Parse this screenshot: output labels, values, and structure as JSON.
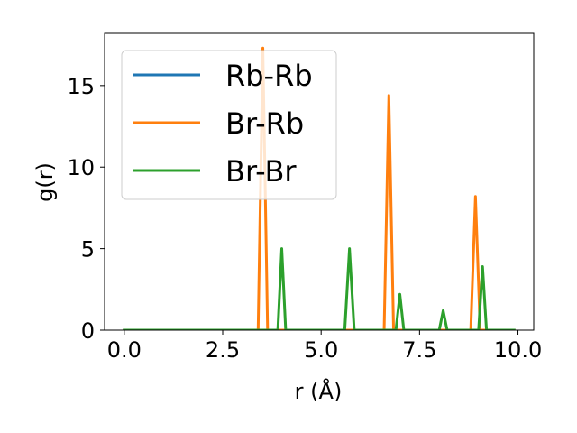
{
  "chart_data": {
    "type": "line",
    "title": "",
    "xlabel": "r (Å)",
    "ylabel": "g(r)",
    "xlim": [
      -0.5,
      10.4
    ],
    "ylim": [
      0,
      18.2
    ],
    "xticks": [
      0.0,
      2.5,
      5.0,
      7.5,
      10.0
    ],
    "xtick_labels": [
      "0.0",
      "2.5",
      "5.0",
      "7.5",
      "10.0"
    ],
    "yticks": [
      0,
      5,
      10,
      15
    ],
    "ytick_labels": [
      "0",
      "5",
      "10",
      "15"
    ],
    "grid": false,
    "legend_position": "upper-left",
    "series": [
      {
        "name": "Rb-Rb",
        "color": "#1f77b4",
        "x": [
          0.0,
          9.9
        ],
        "y": [
          0,
          0
        ]
      },
      {
        "name": "Br-Rb",
        "color": "#ff7f0e",
        "x": [
          0.0,
          3.4,
          3.52,
          3.64,
          6.6,
          6.72,
          6.84,
          8.8,
          8.92,
          9.04,
          9.9
        ],
        "y": [
          0,
          0,
          17.3,
          0,
          0,
          14.4,
          0,
          0,
          8.2,
          0,
          0
        ]
      },
      {
        "name": "Br-Br",
        "color": "#2ca02c",
        "x": [
          0.0,
          3.9,
          4.0,
          4.1,
          5.6,
          5.72,
          5.84,
          6.9,
          7.0,
          7.1,
          8.0,
          8.1,
          8.2,
          9.0,
          9.1,
          9.2,
          9.9
        ],
        "y": [
          0,
          0,
          5.0,
          0,
          0,
          5.0,
          0,
          0,
          2.2,
          0,
          0,
          1.2,
          0,
          0,
          3.9,
          0,
          0
        ]
      }
    ]
  }
}
